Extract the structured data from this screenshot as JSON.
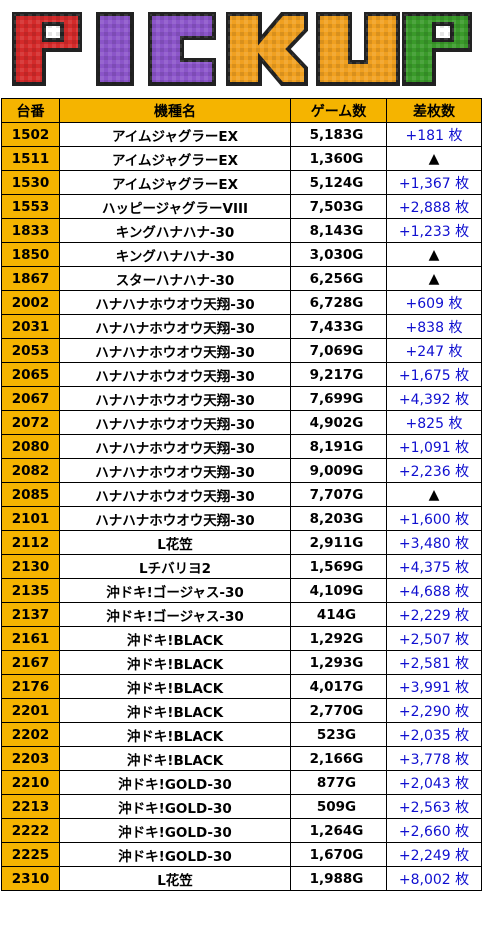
{
  "banner": {
    "text": "PICKUP",
    "letters": [
      "P",
      "I",
      "C",
      "K",
      "U",
      "P"
    ],
    "colors": [
      "#d42a2a",
      "#8b55c9",
      "#8b55c9",
      "#f0a020",
      "#f0a020",
      "#3a9a2a"
    ]
  },
  "table": {
    "headers": [
      "台番",
      "機種名",
      "ゲーム数",
      "差枚数"
    ],
    "rows": [
      {
        "no": "1502",
        "machine": "アイムジャグラーEX",
        "games": "5,183G",
        "diff": "+181 枚",
        "neg": false
      },
      {
        "no": "1511",
        "machine": "アイムジャグラーEX",
        "games": "1,360G",
        "diff": "▲",
        "neg": true
      },
      {
        "no": "1530",
        "machine": "アイムジャグラーEX",
        "games": "5,124G",
        "diff": "+1,367 枚",
        "neg": false
      },
      {
        "no": "1553",
        "machine": "ハッピージャグラーVIII",
        "games": "7,503G",
        "diff": "+2,888 枚",
        "neg": false
      },
      {
        "no": "1833",
        "machine": "キングハナハナ-30",
        "games": "8,143G",
        "diff": "+1,233 枚",
        "neg": false
      },
      {
        "no": "1850",
        "machine": "キングハナハナ-30",
        "games": "3,030G",
        "diff": "▲",
        "neg": true
      },
      {
        "no": "1867",
        "machine": "スターハナハナ-30",
        "games": "6,256G",
        "diff": "▲",
        "neg": true
      },
      {
        "no": "2002",
        "machine": "ハナハナホウオウ天翔-30",
        "games": "6,728G",
        "diff": "+609 枚",
        "neg": false
      },
      {
        "no": "2031",
        "machine": "ハナハナホウオウ天翔-30",
        "games": "7,433G",
        "diff": "+838 枚",
        "neg": false
      },
      {
        "no": "2053",
        "machine": "ハナハナホウオウ天翔-30",
        "games": "7,069G",
        "diff": "+247 枚",
        "neg": false
      },
      {
        "no": "2065",
        "machine": "ハナハナホウオウ天翔-30",
        "games": "9,217G",
        "diff": "+1,675 枚",
        "neg": false
      },
      {
        "no": "2067",
        "machine": "ハナハナホウオウ天翔-30",
        "games": "7,699G",
        "diff": "+4,392 枚",
        "neg": false
      },
      {
        "no": "2072",
        "machine": "ハナハナホウオウ天翔-30",
        "games": "4,902G",
        "diff": "+825 枚",
        "neg": false
      },
      {
        "no": "2080",
        "machine": "ハナハナホウオウ天翔-30",
        "games": "8,191G",
        "diff": "+1,091 枚",
        "neg": false
      },
      {
        "no": "2082",
        "machine": "ハナハナホウオウ天翔-30",
        "games": "9,009G",
        "diff": "+2,236 枚",
        "neg": false
      },
      {
        "no": "2085",
        "machine": "ハナハナホウオウ天翔-30",
        "games": "7,707G",
        "diff": "▲",
        "neg": true
      },
      {
        "no": "2101",
        "machine": "ハナハナホウオウ天翔-30",
        "games": "8,203G",
        "diff": "+1,600 枚",
        "neg": false
      },
      {
        "no": "2112",
        "machine": "L花笠",
        "games": "2,911G",
        "diff": "+3,480 枚",
        "neg": false
      },
      {
        "no": "2130",
        "machine": "Lチバリヨ2",
        "games": "1,569G",
        "diff": "+4,375 枚",
        "neg": false
      },
      {
        "no": "2135",
        "machine": "沖ドキ!ゴージャス-30",
        "games": "4,109G",
        "diff": "+4,688 枚",
        "neg": false
      },
      {
        "no": "2137",
        "machine": "沖ドキ!ゴージャス-30",
        "games": "414G",
        "diff": "+2,229 枚",
        "neg": false
      },
      {
        "no": "2161",
        "machine": "沖ドキ!BLACK",
        "games": "1,292G",
        "diff": "+2,507 枚",
        "neg": false
      },
      {
        "no": "2167",
        "machine": "沖ドキ!BLACK",
        "games": "1,293G",
        "diff": "+2,581 枚",
        "neg": false
      },
      {
        "no": "2176",
        "machine": "沖ドキ!BLACK",
        "games": "4,017G",
        "diff": "+3,991 枚",
        "neg": false
      },
      {
        "no": "2201",
        "machine": "沖ドキ!BLACK",
        "games": "2,770G",
        "diff": "+2,290 枚",
        "neg": false
      },
      {
        "no": "2202",
        "machine": "沖ドキ!BLACK",
        "games": "523G",
        "diff": "+2,035 枚",
        "neg": false
      },
      {
        "no": "2203",
        "machine": "沖ドキ!BLACK",
        "games": "2,166G",
        "diff": "+3,778 枚",
        "neg": false
      },
      {
        "no": "2210",
        "machine": "沖ドキ!GOLD-30",
        "games": "877G",
        "diff": "+2,043 枚",
        "neg": false
      },
      {
        "no": "2213",
        "machine": "沖ドキ!GOLD-30",
        "games": "509G",
        "diff": "+2,563 枚",
        "neg": false
      },
      {
        "no": "2222",
        "machine": "沖ドキ!GOLD-30",
        "games": "1,264G",
        "diff": "+2,660 枚",
        "neg": false
      },
      {
        "no": "2225",
        "machine": "沖ドキ!GOLD-30",
        "games": "1,670G",
        "diff": "+2,249 枚",
        "neg": false
      },
      {
        "no": "2310",
        "machine": "L花笠",
        "games": "1,988G",
        "diff": "+8,002 枚",
        "neg": false
      }
    ]
  }
}
